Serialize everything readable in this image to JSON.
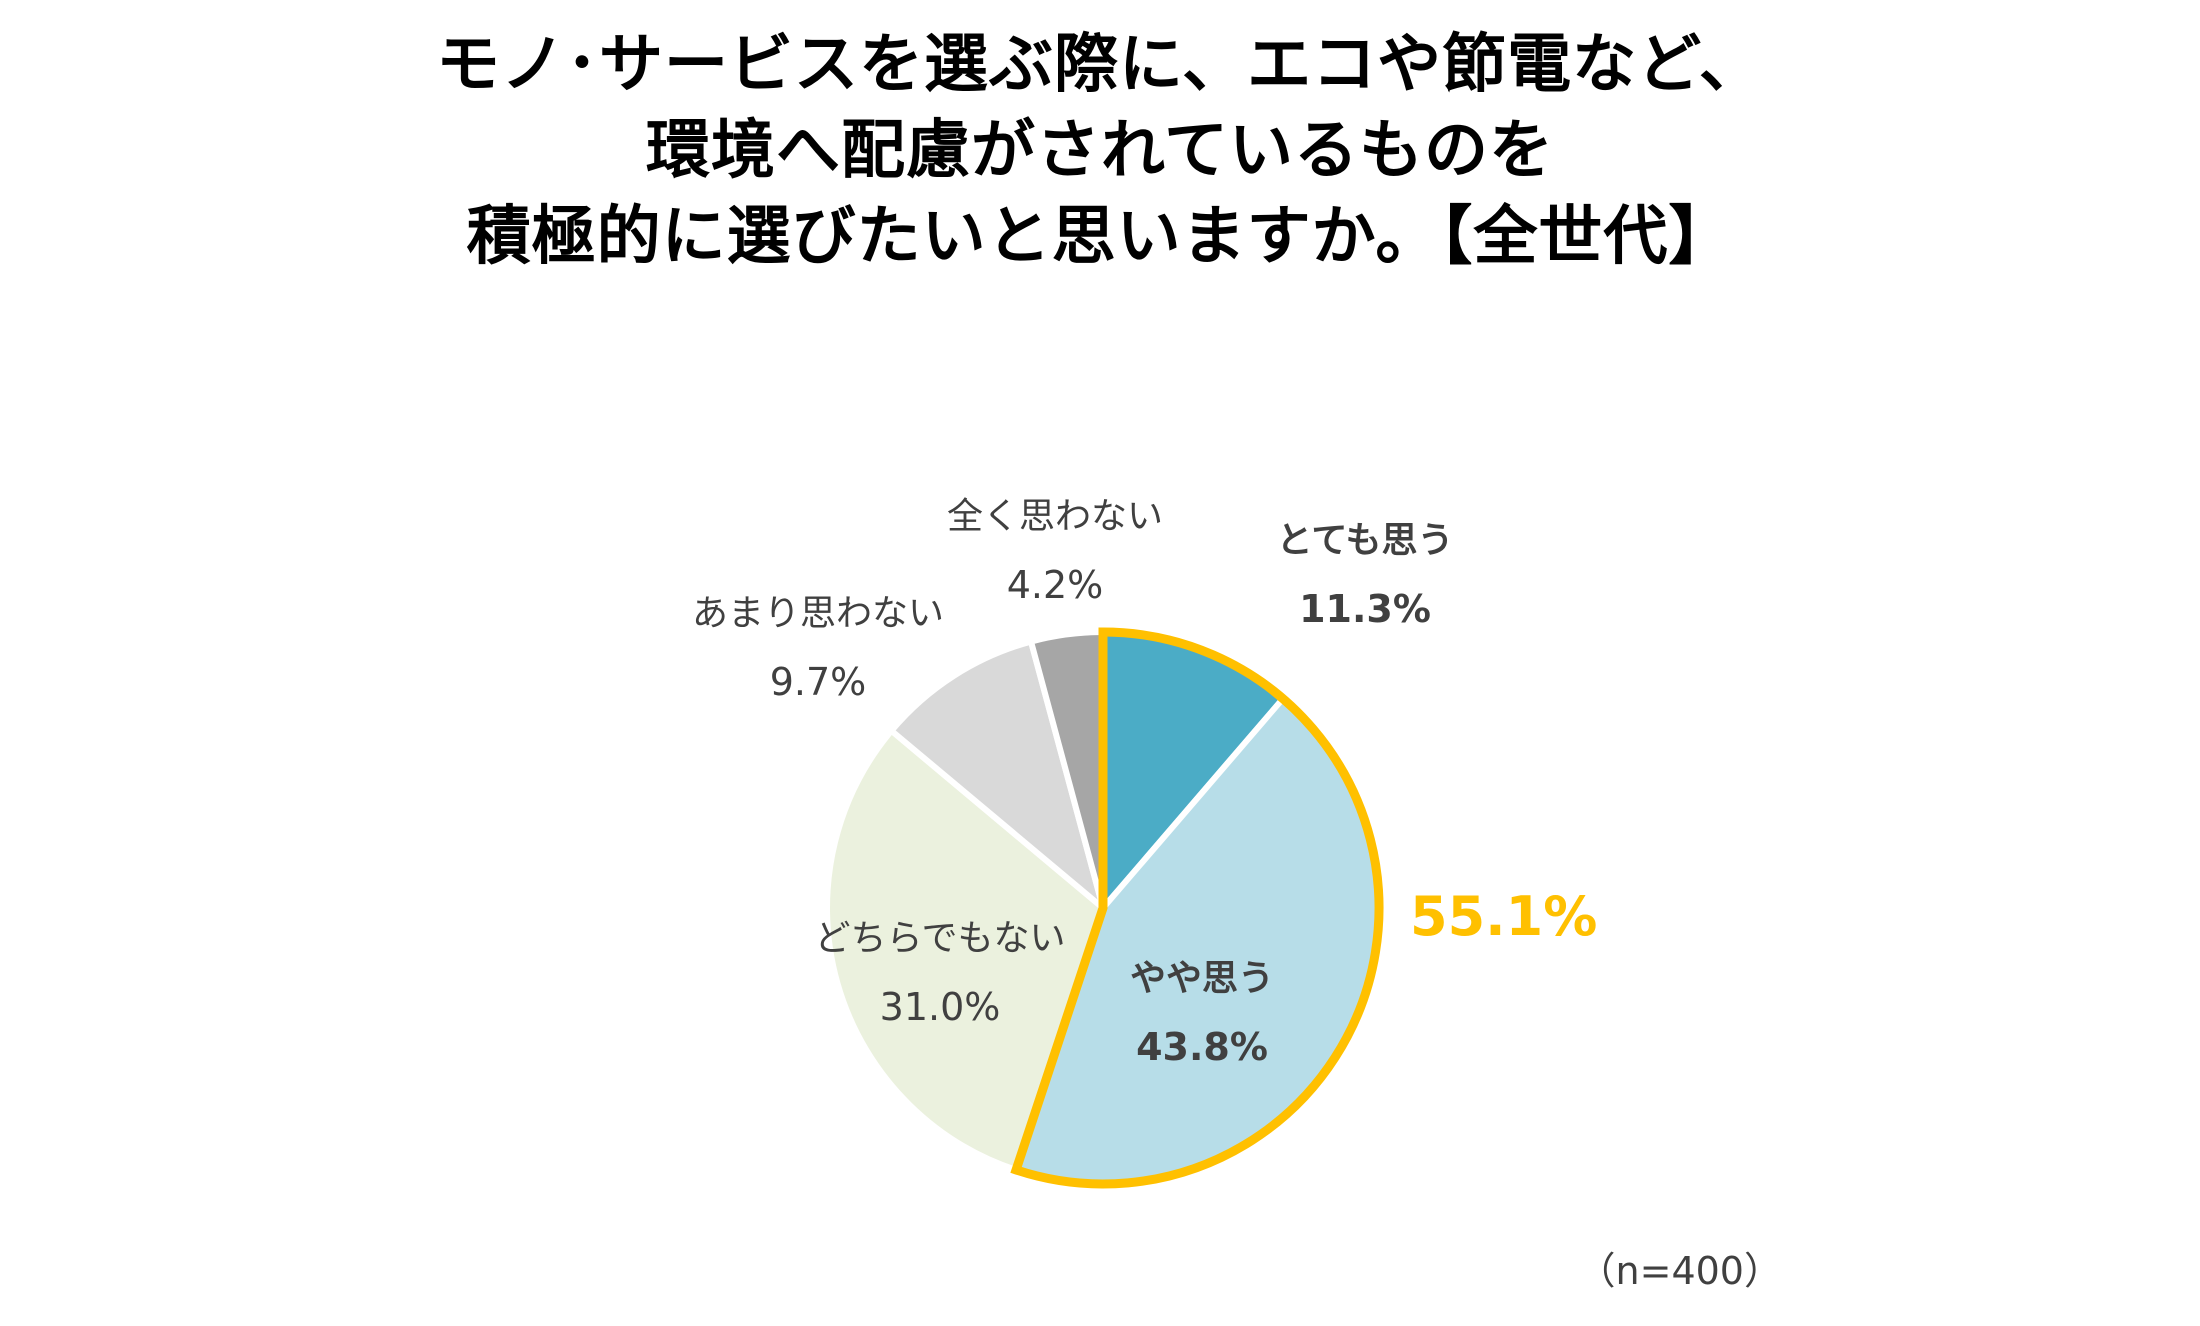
{
  "title_lines": [
    "モノ･サービスを選ぶ際に、エコや節電など、",
    "環境へ配慮がされているものを",
    "積極的に選びたいと思いますか。【全世代】"
  ],
  "note": "（n=400）",
  "highlight": {
    "label": "55.1%",
    "color": "#FFC000"
  },
  "chart_data": {
    "type": "pie",
    "title": "",
    "start": "12 o'clock",
    "direction": "clockwise",
    "slices": [
      {
        "label": "とても思う",
        "value": 11.3,
        "value_label": "11.3%",
        "color": "#4BACC6",
        "label_color": "#404040",
        "bold": true
      },
      {
        "label": "やや思う",
        "value": 43.8,
        "value_label": "43.8%",
        "color": "#B7DDE8",
        "label_color": "#404040",
        "bold": true
      },
      {
        "label": "どちらでもない",
        "value": 31.0,
        "value_label": "31.0%",
        "color": "#EBF1DE",
        "label_color": "#404040",
        "bold": false
      },
      {
        "label": "あまり思わない",
        "value": 9.7,
        "value_label": "9.7%",
        "color": "#D9D9D9",
        "label_color": "#404040",
        "bold": false
      },
      {
        "label": "全く思わない",
        "value": 4.2,
        "value_label": "4.2%",
        "color": "#A6A6A6",
        "label_color": "#404040",
        "bold": false
      }
    ]
  }
}
